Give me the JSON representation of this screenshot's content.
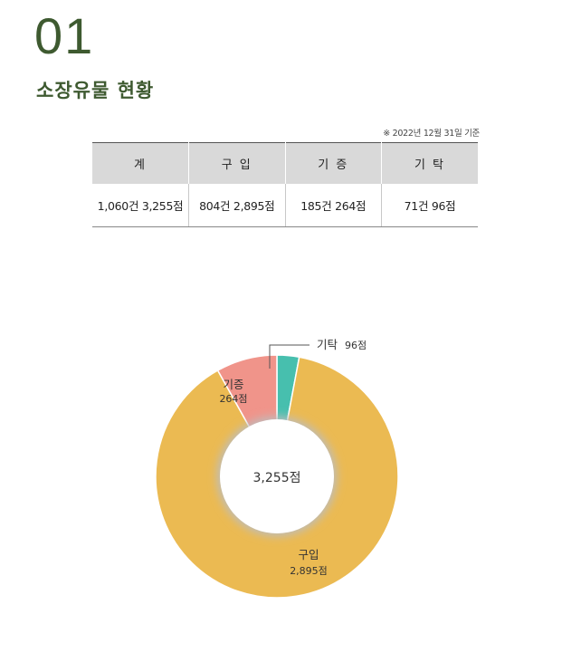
{
  "section": {
    "number": "01",
    "title": "소장유물 현황"
  },
  "as_of": "※ 2022년 12월 31일 기준",
  "table": {
    "headers": [
      "계",
      "구 입",
      "기 증",
      "기 탁"
    ],
    "rows": [
      [
        "1,060건 3,255점",
        "804건 2,895점",
        "185건 264점",
        "71건 96점"
      ]
    ]
  },
  "chart_data": {
    "type": "pie",
    "variant": "donut",
    "center_label": "3,255점",
    "series": [
      {
        "name": "기탁",
        "value": 96,
        "label_line1": "기탁",
        "label_line2": "96점",
        "color": "#47bfae"
      },
      {
        "name": "구입",
        "value": 2895,
        "label_line1": "구입",
        "label_line2": "2,895점",
        "color": "#ebba52"
      },
      {
        "name": "기증",
        "value": 264,
        "label_line1": "기증",
        "label_line2": "264점",
        "color": "#f0948a"
      }
    ]
  }
}
